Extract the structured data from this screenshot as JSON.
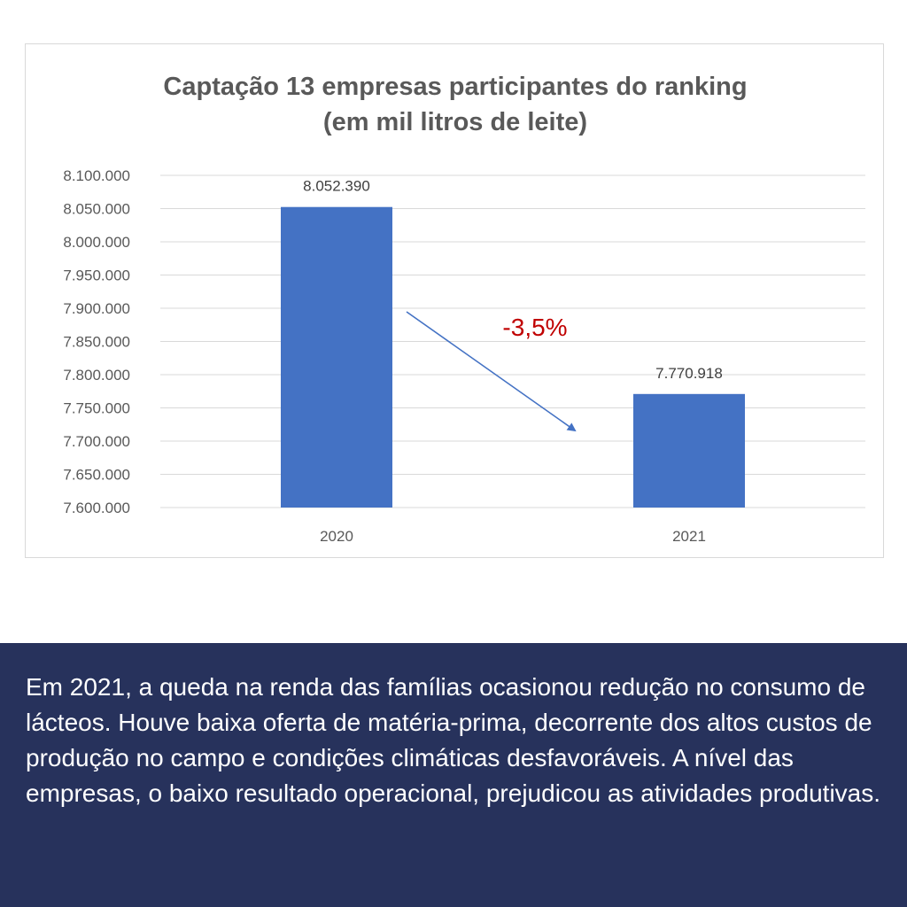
{
  "chart_data": {
    "type": "bar",
    "title_line1": "Captação 13 empresas participantes do ranking",
    "title_line2": "(em mil litros de leite)",
    "categories": [
      "2020",
      "2021"
    ],
    "values": [
      8052390,
      7770918
    ],
    "value_labels": [
      "8.052.390",
      "7.770.918"
    ],
    "ylim": [
      7600000,
      8100000
    ],
    "ytick_step": 50000,
    "ytick_labels": [
      "7.600.000",
      "7.650.000",
      "7.700.000",
      "7.750.000",
      "7.800.000",
      "7.850.000",
      "7.900.000",
      "7.950.000",
      "8.000.000",
      "8.050.000",
      "8.100.000"
    ],
    "xlabel": "",
    "ylabel": "",
    "grid": true,
    "legend": "none",
    "annotation": {
      "text": "-3,5%",
      "description": "arrow from 2020 bar down to 2021 bar"
    }
  },
  "colors": {
    "bar": "#4472c4",
    "arrow": "#4472c4",
    "annotation": "#c00000",
    "panel": "#27325c",
    "grid": "#d9d9d9",
    "axis_text": "#595959"
  },
  "caption": {
    "text": "Em 2021, a queda na renda das famílias ocasionou redução no consumo de lácteos. Houve baixa oferta de matéria-prima, decorrente dos altos custos de produção no campo e condições climáticas desfavoráveis. A nível das empresas, o baixo resultado operacional, prejudicou as atividades produtivas."
  }
}
